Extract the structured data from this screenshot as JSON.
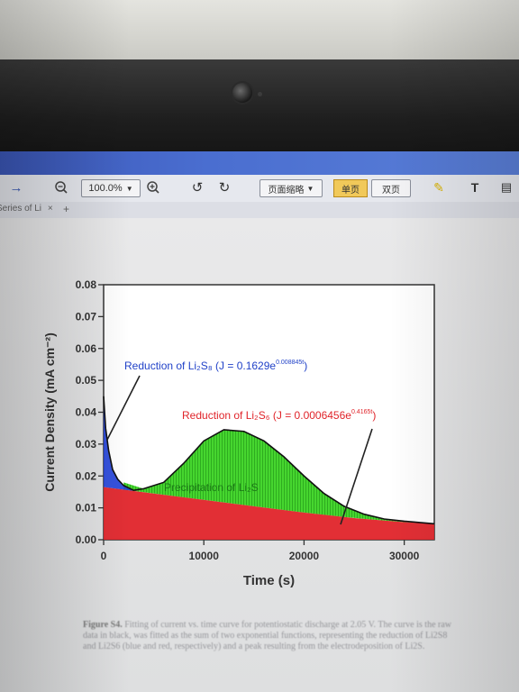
{
  "toolbar": {
    "arrow_icon": "arrow-right-icon",
    "zoom_out_icon": "zoom-out-icon",
    "zoom_value": "100.0%",
    "zoom_in_icon": "zoom-in-icon",
    "rotate_left_icon": "rotate-left-icon",
    "rotate_right_icon": "rotate-right-icon",
    "view_mode_label": "页面缩略",
    "single_page_label": "单页",
    "double_page_label": "双页",
    "text_tool_label": "T"
  },
  "tabs": [
    {
      "label": "Series of Li"
    }
  ],
  "chart_data": {
    "type": "area",
    "xlabel": "Time (s)",
    "ylabel": "Current Density (mA cm⁻²)",
    "xlim": [
      0,
      33000
    ],
    "ylim": [
      0,
      0.08
    ],
    "x_ticks": [
      "0",
      "10000",
      "20000",
      "30000"
    ],
    "y_ticks": [
      "0.00",
      "0.01",
      "0.02",
      "0.03",
      "0.04",
      "0.05",
      "0.06",
      "0.07",
      "0.08"
    ],
    "series": [
      {
        "name": "Reduction of Li2S8",
        "color": "#1f3fd8",
        "x": [
          0,
          200,
          500,
          900,
          1400,
          2000,
          3000
        ],
        "y": [
          0.045,
          0.035,
          0.028,
          0.022,
          0.019,
          0.017,
          0.0155
        ]
      },
      {
        "name": "Reduction of Li2S6",
        "color": "#e0242a",
        "x": [
          0,
          5000,
          10000,
          15000,
          20000,
          25000,
          30000,
          33000
        ],
        "y": [
          0.0165,
          0.0145,
          0.0125,
          0.0105,
          0.0085,
          0.0068,
          0.0055,
          0.005
        ]
      },
      {
        "name": "Precipitation of Li2S",
        "color": "#3fd02a",
        "x": [
          2000,
          4000,
          6000,
          8000,
          10000,
          12000,
          14000,
          16000,
          18000,
          20000,
          22000,
          24000,
          26000,
          28000,
          30000,
          33000
        ],
        "y": [
          0.018,
          0.016,
          0.018,
          0.024,
          0.031,
          0.0345,
          0.034,
          0.031,
          0.026,
          0.02,
          0.0145,
          0.0105,
          0.008,
          0.0065,
          0.0058,
          0.005
        ]
      }
    ],
    "annotations": [
      {
        "text": "Reduction of Li₂S₈ (J = 0.1629e",
        "sup": "0.008845t",
        "close": ")",
        "color": "#2142c8"
      },
      {
        "text": "Reduction of Li₂S₆ (J = 0.0006456e",
        "sup": "0.4165t",
        "close": ")",
        "color": "#e0242a"
      },
      {
        "text": "Precipitation of Li₂S",
        "color": "#1d7a18"
      }
    ]
  },
  "caption": {
    "label": "Figure S4.",
    "text": "Fitting of current vs. time curve for potentiostatic discharge at 2.05 V. The curve is the raw data in black, was fitted as the sum of two exponential functions, representing the reduction of Li2S8 and Li2S6 (blue and red, respectively) and a peak resulting from the electrodeposition of Li2S."
  },
  "colors": {
    "screen_header": "#4a6ed0",
    "plot_bg": "#ffffff",
    "bezel": "#1e1e1e"
  }
}
